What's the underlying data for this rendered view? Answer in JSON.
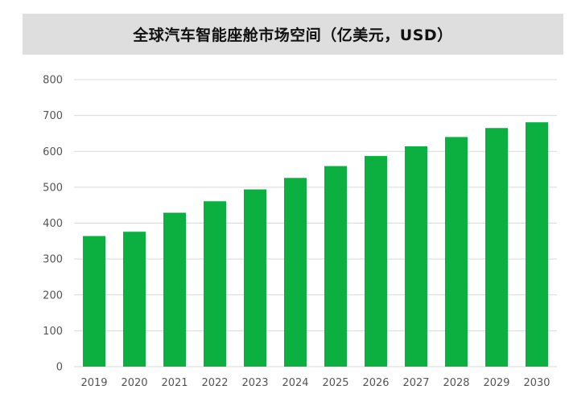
{
  "chart_data": {
    "type": "bar",
    "title": "全球汽车智能座舱市场空间（亿美元，USD）",
    "categories": [
      "2019",
      "2020",
      "2021",
      "2022",
      "2023",
      "2024",
      "2025",
      "2026",
      "2027",
      "2028",
      "2029",
      "2030"
    ],
    "values": [
      364,
      376,
      429,
      461,
      494,
      526,
      559,
      587,
      614,
      640,
      665,
      681
    ],
    "ylim": [
      0,
      800
    ],
    "yticks": [
      "0",
      "100",
      "200",
      "300",
      "400",
      "500",
      "600",
      "700",
      "800"
    ],
    "grid": true,
    "legend": "none",
    "bar_color": "#0bb040",
    "grid_color": "#d9d9d9"
  }
}
